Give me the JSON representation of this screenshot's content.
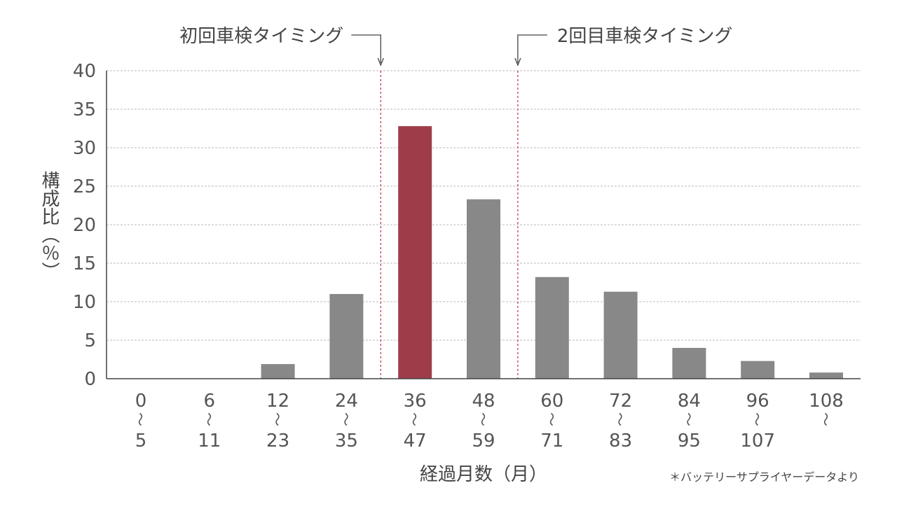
{
  "chart_data": {
    "type": "bar",
    "categories": [
      {
        "from": "0",
        "to": "5"
      },
      {
        "from": "6",
        "to": "11"
      },
      {
        "from": "12",
        "to": "23"
      },
      {
        "from": "24",
        "to": "35"
      },
      {
        "from": "36",
        "to": "47"
      },
      {
        "from": "48",
        "to": "59"
      },
      {
        "from": "60",
        "to": "71"
      },
      {
        "from": "72",
        "to": "83"
      },
      {
        "from": "84",
        "to": "95"
      },
      {
        "from": "96",
        "to": "107"
      },
      {
        "from": "108",
        "to": ""
      }
    ],
    "range_mark": "〜",
    "values": [
      0,
      0,
      1.9,
      11.0,
      32.8,
      23.3,
      13.2,
      11.3,
      4.0,
      2.3,
      0.8
    ],
    "highlight_index": 4,
    "ylabel": "構成比（％）",
    "xlabel": "経過月数（月）",
    "ylim": [
      0,
      40
    ],
    "yticks": [
      0,
      5,
      10,
      15,
      20,
      25,
      30,
      35,
      40
    ],
    "grid": true,
    "annotations": [
      {
        "text": "初回車検タイミング",
        "between": [
          3,
          4
        ]
      },
      {
        "text": "2回目車検タイミング",
        "between": [
          5,
          6
        ]
      }
    ],
    "footnote": "＊バッテリーサプライヤーデータより"
  },
  "colors": {
    "bar": "#888888",
    "highlight": "#9e3d49",
    "grid": "#bbbbbb",
    "marker_line": "#c0404f",
    "axis": "#444444"
  }
}
